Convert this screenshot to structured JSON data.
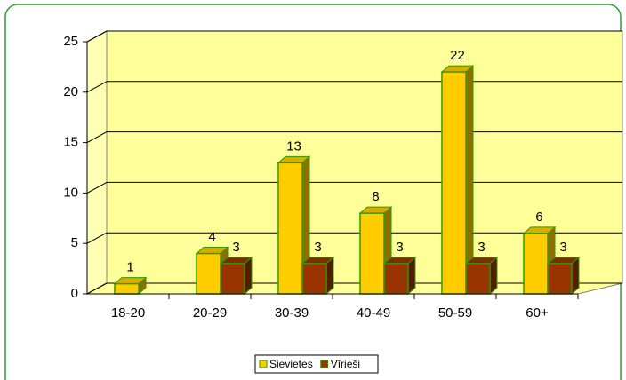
{
  "chart_data": {
    "type": "bar3d",
    "categories": [
      "18-20",
      "20-29",
      "30-39",
      "40-49",
      "50-59",
      "60+"
    ],
    "series": [
      {
        "name": "Sievietes",
        "color": "#ffcc00",
        "values": [
          1,
          4,
          13,
          8,
          22,
          6
        ]
      },
      {
        "name": "Vīrieši",
        "color": "#993300",
        "values": [
          null,
          3,
          3,
          3,
          3,
          3
        ]
      }
    ],
    "ylim": [
      0,
      25
    ],
    "yticks": [
      0,
      5,
      10,
      15,
      20,
      25
    ],
    "grid": true,
    "legend": "bottom"
  }
}
